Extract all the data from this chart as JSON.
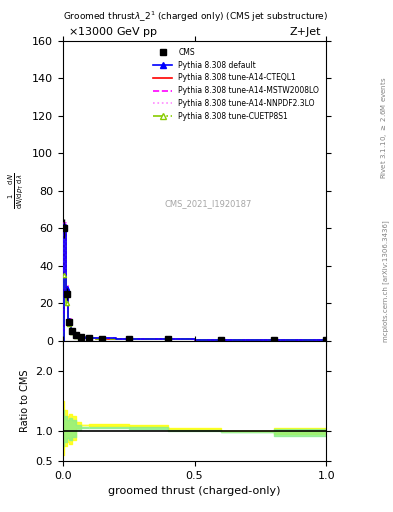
{
  "title_top": "13000 GeV pp",
  "title_right": "Z+Jet",
  "plot_title": "Groomed thrust$\\lambda$_2$^1$ (charged only) (CMS jet substructure)",
  "xlabel": "groomed thrust (charged-only)",
  "ylabel_main": "$\\frac{1}{\\mathrm{d}N / \\mathrm{d}p_\\mathrm{T}} \\frac{\\mathrm{d}N}{\\mathrm{d}\\lambda}$",
  "ylabel_ratio": "Ratio to CMS",
  "right_label1": "Rivet 3.1.10, $\\geq$ 2.6M events",
  "right_label2": "mcplots.cern.ch [arXiv:1306.3436]",
  "watermark": "CMS_2021_I1920187",
  "ylim_main": [
    0,
    160
  ],
  "ylim_ratio": [
    0.5,
    2.5
  ],
  "x_data": [
    0.005,
    0.015,
    0.025,
    0.035,
    0.05,
    0.07,
    0.1,
    0.15,
    0.25,
    0.4,
    0.6,
    0.8,
    1.0
  ],
  "cms_data": [
    60,
    25,
    10,
    5,
    3,
    2,
    1.5,
    1.2,
    1.0,
    0.8,
    0.5,
    0.3,
    0.2
  ],
  "cms_err": [
    5,
    3,
    1.5,
    0.8,
    0.5,
    0.3,
    0.2,
    0.2,
    0.15,
    0.1,
    0.08,
    0.06,
    0.05
  ],
  "pythia_default": [
    62,
    28,
    11,
    5.5,
    3.2,
    2.1,
    1.6,
    1.3,
    1.05,
    0.85,
    0.52,
    0.32,
    0.22
  ],
  "pythia_cteql1": [
    61,
    27,
    10.8,
    5.3,
    3.1,
    2.0,
    1.55,
    1.25,
    1.02,
    0.82,
    0.51,
    0.31,
    0.21
  ],
  "pythia_mstw": [
    63,
    29,
    11.5,
    5.7,
    3.4,
    2.2,
    1.65,
    1.35,
    1.08,
    0.88,
    0.54,
    0.34,
    0.23
  ],
  "pythia_nnpdf": [
    62.5,
    28.5,
    11.2,
    5.6,
    3.3,
    2.15,
    1.62,
    1.32,
    1.06,
    0.86,
    0.53,
    0.33,
    0.22
  ],
  "pythia_cuetp": [
    35,
    20,
    9,
    4.5,
    2.8,
    1.9,
    1.4,
    1.15,
    0.95,
    0.78,
    0.48,
    0.29,
    0.2
  ],
  "ratio_yellow_lo": [
    0.6,
    0.75,
    0.82,
    0.78,
    0.85,
    1.05,
    1.1,
    1.12,
    1.12,
    1.1,
    1.05,
    1.0,
    0.95
  ],
  "ratio_yellow_hi": [
    1.5,
    1.35,
    1.25,
    1.28,
    1.25,
    1.15,
    1.1,
    1.08,
    1.08,
    1.06,
    1.02,
    1.0,
    1.05
  ],
  "ratio_green_lo": [
    0.75,
    0.82,
    0.88,
    0.85,
    0.9,
    1.02,
    1.05,
    1.07,
    1.07,
    1.06,
    1.02,
    0.98,
    0.92
  ],
  "ratio_green_hi": [
    1.35,
    1.25,
    1.18,
    1.22,
    1.18,
    1.1,
    1.06,
    1.05,
    1.05,
    1.03,
    1.0,
    0.98,
    1.03
  ],
  "color_default": "#0000ff",
  "color_cteql1": "#ff0000",
  "color_mstw": "#ff00ff",
  "color_nnpdf": "#ff88ff",
  "color_cuetp": "#88cc00",
  "color_cms": "#000000",
  "color_yellow": "#ffff00",
  "color_green": "#88ee88",
  "x_bins": [
    0.0,
    0.01,
    0.02,
    0.03,
    0.04,
    0.06,
    0.08,
    0.12,
    0.18,
    0.32,
    0.48,
    0.7,
    0.9,
    1.0
  ]
}
